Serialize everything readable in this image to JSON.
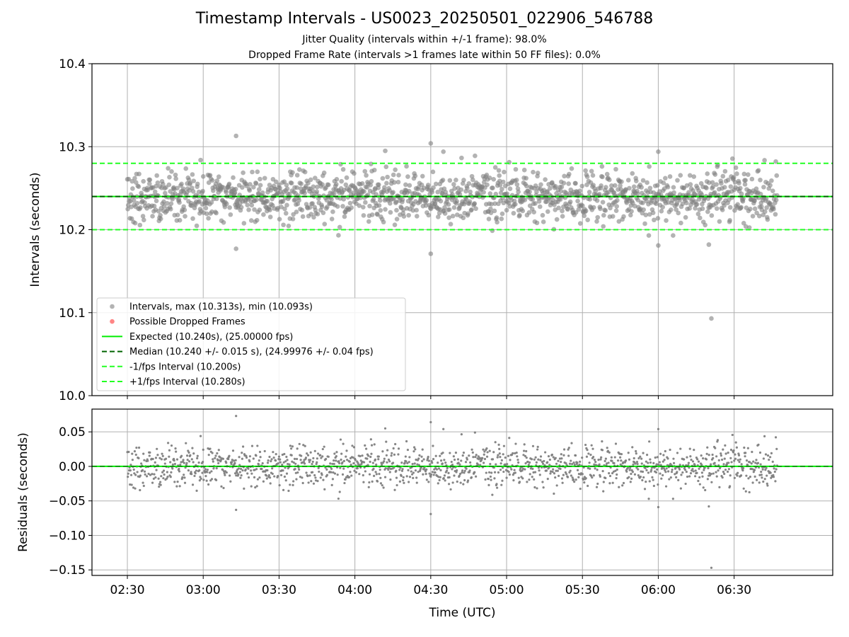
{
  "title": "Timestamp Intervals - US0023_20250501_022906_546788",
  "subtitle_1": "Jitter Quality (intervals within +/-1 frame): 98.0%",
  "subtitle_2": "Dropped Frame Rate (intervals >1 frames late within 50 FF files): 0.0%",
  "colors": {
    "points": "#808080",
    "dropped": "#ff6666",
    "expected": "#00ee00",
    "median": "#006400",
    "bounds": "#22ff22",
    "grid": "#b0b0b0"
  },
  "chart_data": [
    {
      "type": "scatter",
      "ylabel": "Intervals (seconds)",
      "xlabel": "",
      "ylim": [
        10.0,
        10.4
      ],
      "yticks": [
        "10.0",
        "10.1",
        "10.2",
        "10.3",
        "10.4"
      ],
      "ytick_values": [
        10.0,
        10.1,
        10.2,
        10.3,
        10.4
      ],
      "xlim": [
        "02:16",
        "07:09"
      ],
      "x_ticks": [
        "02:30",
        "03:00",
        "03:30",
        "04:00",
        "04:30",
        "05:00",
        "05:30",
        "06:00",
        "06:30"
      ],
      "grid": true,
      "legend_position": "lower-left",
      "legend": [
        "Intervals, max (10.313s), min (10.093s)",
        "Possible Dropped Frames",
        "Expected (10.240s), (25.00000 fps)",
        "Median (10.240 +/- 0.015 s), (24.99976 +/- 0.04 fps)",
        "-1/fps Interval (10.200s)",
        "+1/fps Interval (10.280s)"
      ],
      "reference_lines": {
        "expected": 10.24,
        "median": 10.24,
        "minus_1_fps": 10.2,
        "plus_1_fps": 10.28
      },
      "series": [
        {
          "name": "Intervals, max (10.313s), min (10.093s)",
          "x_range": [
            "02:30",
            "06:47"
          ],
          "count_approx": 1500,
          "center": 10.24,
          "spread_sd": 0.015,
          "max": 10.313,
          "min": 10.093,
          "notable_points": [
            {
              "x": "03:13",
              "y": 10.313
            },
            {
              "x": "03:13",
              "y": 10.177
            },
            {
              "x": "04:30",
              "y": 10.304
            },
            {
              "x": "04:30",
              "y": 10.171
            },
            {
              "x": "04:12",
              "y": 10.295
            },
            {
              "x": "04:35",
              "y": 10.294
            },
            {
              "x": "06:00",
              "y": 10.294
            },
            {
              "x": "06:00",
              "y": 10.181
            },
            {
              "x": "06:20",
              "y": 10.182
            },
            {
              "x": "06:21",
              "y": 10.093
            }
          ]
        },
        {
          "name": "Possible Dropped Frames",
          "values": []
        }
      ]
    },
    {
      "type": "scatter",
      "ylabel": "Residuals (seconds)",
      "xlabel": "Time (UTC)",
      "ylim": [
        -0.158,
        0.083
      ],
      "yticks": [
        "0.05",
        "0.00",
        "−0.05",
        "−0.10",
        "−0.15"
      ],
      "ytick_values": [
        0.05,
        0.0,
        -0.05,
        -0.1,
        -0.15
      ],
      "x_ticks": [
        "02:30",
        "03:00",
        "03:30",
        "04:00",
        "04:30",
        "05:00",
        "05:30",
        "06:00",
        "06:30"
      ],
      "grid": true,
      "reference_lines": {
        "zero": 0.0
      },
      "series": [
        {
          "name": "Residuals",
          "max": 0.073,
          "min": -0.147,
          "spread_sd": 0.015
        }
      ]
    }
  ]
}
